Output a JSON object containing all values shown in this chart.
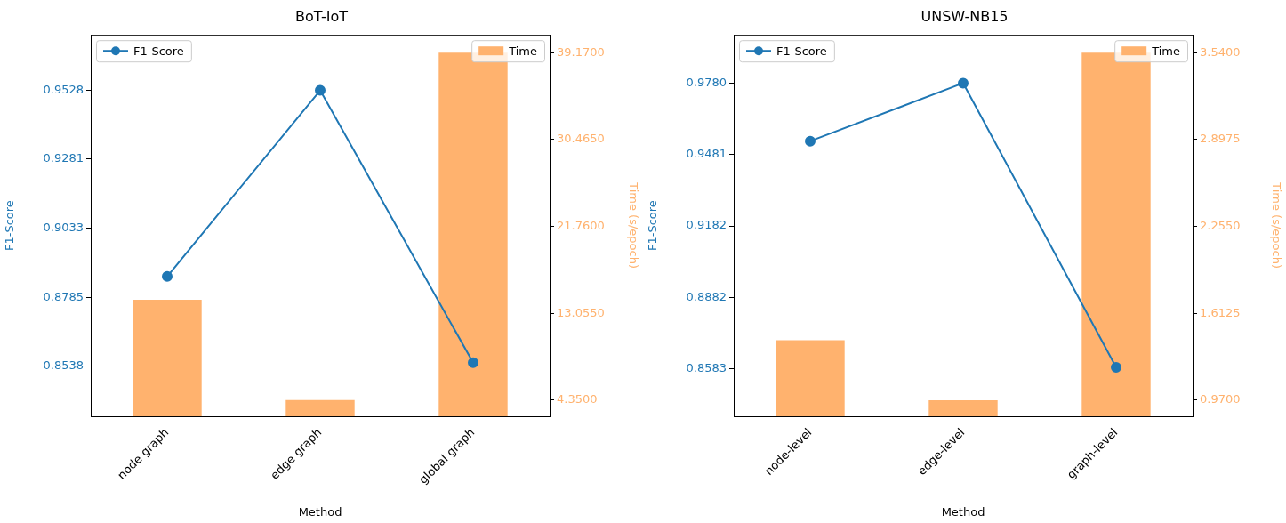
{
  "chart_data": [
    {
      "type": "line",
      "title": "BoT-IoT",
      "xlabel": "Method",
      "ylabel": "F1-Score",
      "y2label": "Time (s/epoch)",
      "categories": [
        "node graph",
        "edge graph",
        "global graph"
      ],
      "series": [
        {
          "name": "F1-Score",
          "color": "#1f77b4",
          "values": [
            0.886,
            0.9528,
            0.855
          ]
        },
        {
          "name": "Time",
          "type": "bar",
          "axis": "y2",
          "color": "#ffb26e",
          "values": [
            14.4,
            4.35,
            39.17
          ]
        }
      ],
      "ylim": [
        0.8358,
        0.9727
      ],
      "yticks": [
        {
          "value": 0.8538,
          "label": "0.8538"
        },
        {
          "value": 0.8785,
          "label": "0.8785"
        },
        {
          "value": 0.9033,
          "label": "0.9033"
        },
        {
          "value": 0.9281,
          "label": "0.9281"
        },
        {
          "value": 0.9528,
          "label": "0.9528"
        }
      ],
      "y2lim": [
        2.73,
        40.96
      ],
      "y2ticks": [
        {
          "value": 4.35,
          "label": "4.3500"
        },
        {
          "value": 13.055,
          "label": "13.0550"
        },
        {
          "value": 21.76,
          "label": "21.7600"
        },
        {
          "value": 30.465,
          "label": "30.4650"
        },
        {
          "value": 39.17,
          "label": "39.1700"
        }
      ],
      "legend": "top",
      "marker": "circle"
    },
    {
      "type": "line",
      "title": "UNSW-NB15",
      "xlabel": "Method",
      "ylabel": "F1-Score",
      "y2label": "Time (s/epoch)",
      "categories": [
        "node-level",
        "edge-level",
        "graph-level"
      ],
      "series": [
        {
          "name": "F1-Score",
          "color": "#1f77b4",
          "values": [
            0.9537,
            0.978,
            0.859
          ]
        },
        {
          "name": "Time",
          "type": "bar",
          "axis": "y2",
          "color": "#ffb26e",
          "values": [
            1.414,
            0.97,
            3.54
          ]
        }
      ],
      "ylim": [
        0.8385,
        0.9982
      ],
      "yticks": [
        {
          "value": 0.8583,
          "label": "0.8583"
        },
        {
          "value": 0.8882,
          "label": "0.8882"
        },
        {
          "value": 0.9182,
          "label": "0.9182"
        },
        {
          "value": 0.9481,
          "label": "0.9481"
        },
        {
          "value": 0.978,
          "label": "0.9780"
        }
      ],
      "y2lim": [
        0.851,
        3.672
      ],
      "y2ticks": [
        {
          "value": 0.97,
          "label": "0.9700"
        },
        {
          "value": 1.6125,
          "label": "1.6125"
        },
        {
          "value": 2.255,
          "label": "2.2550"
        },
        {
          "value": 2.8975,
          "label": "2.8975"
        },
        {
          "value": 3.54,
          "label": "3.5400"
        }
      ],
      "legend": "top",
      "marker": "circle"
    }
  ]
}
